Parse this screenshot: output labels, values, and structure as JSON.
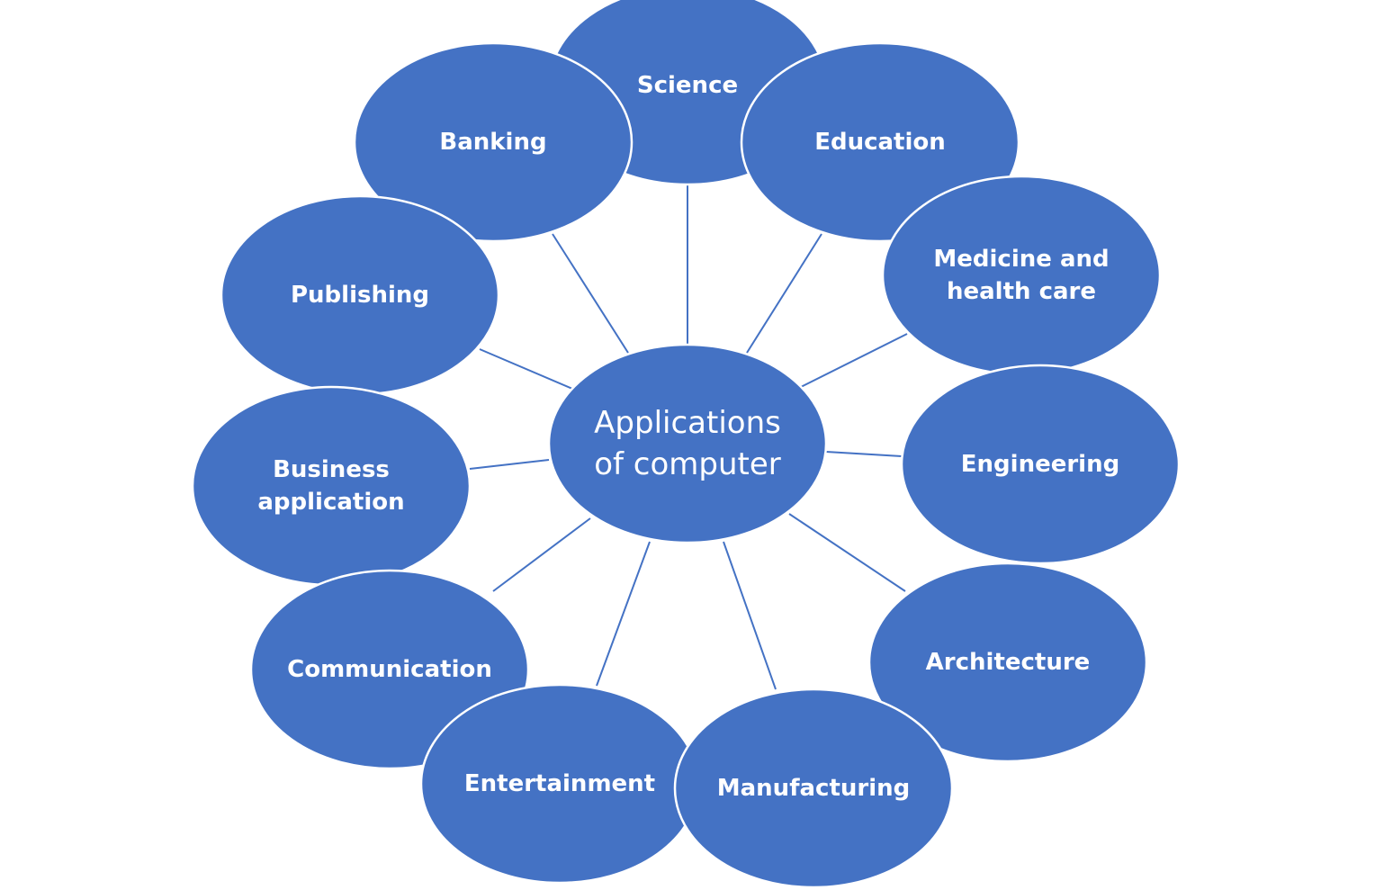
{
  "diagram": {
    "center": {
      "lines": [
        "Applications",
        "of computer"
      ]
    },
    "nodes": [
      {
        "id": "publishing",
        "lines": [
          "Publishing"
        ]
      },
      {
        "id": "banking",
        "lines": [
          "Banking"
        ]
      },
      {
        "id": "science",
        "lines": [
          "Science"
        ]
      },
      {
        "id": "education",
        "lines": [
          "Education"
        ]
      },
      {
        "id": "medicine",
        "lines": [
          "Medicine and",
          "health care"
        ]
      },
      {
        "id": "engineering",
        "lines": [
          "Engineering"
        ]
      },
      {
        "id": "architecture",
        "lines": [
          "Architecture"
        ]
      },
      {
        "id": "manufacturing",
        "lines": [
          "Manufacturing"
        ]
      },
      {
        "id": "entertainment",
        "lines": [
          "Entertainment"
        ]
      },
      {
        "id": "communication",
        "lines": [
          "Communication"
        ]
      },
      {
        "id": "business",
        "lines": [
          "Business",
          "application"
        ]
      }
    ]
  },
  "colors": {
    "node_fill": "#4472C4",
    "connector": "#4472C4",
    "text": "#FFFFFF",
    "outline": "#FFFFFF",
    "background": "#FFFFFF"
  }
}
